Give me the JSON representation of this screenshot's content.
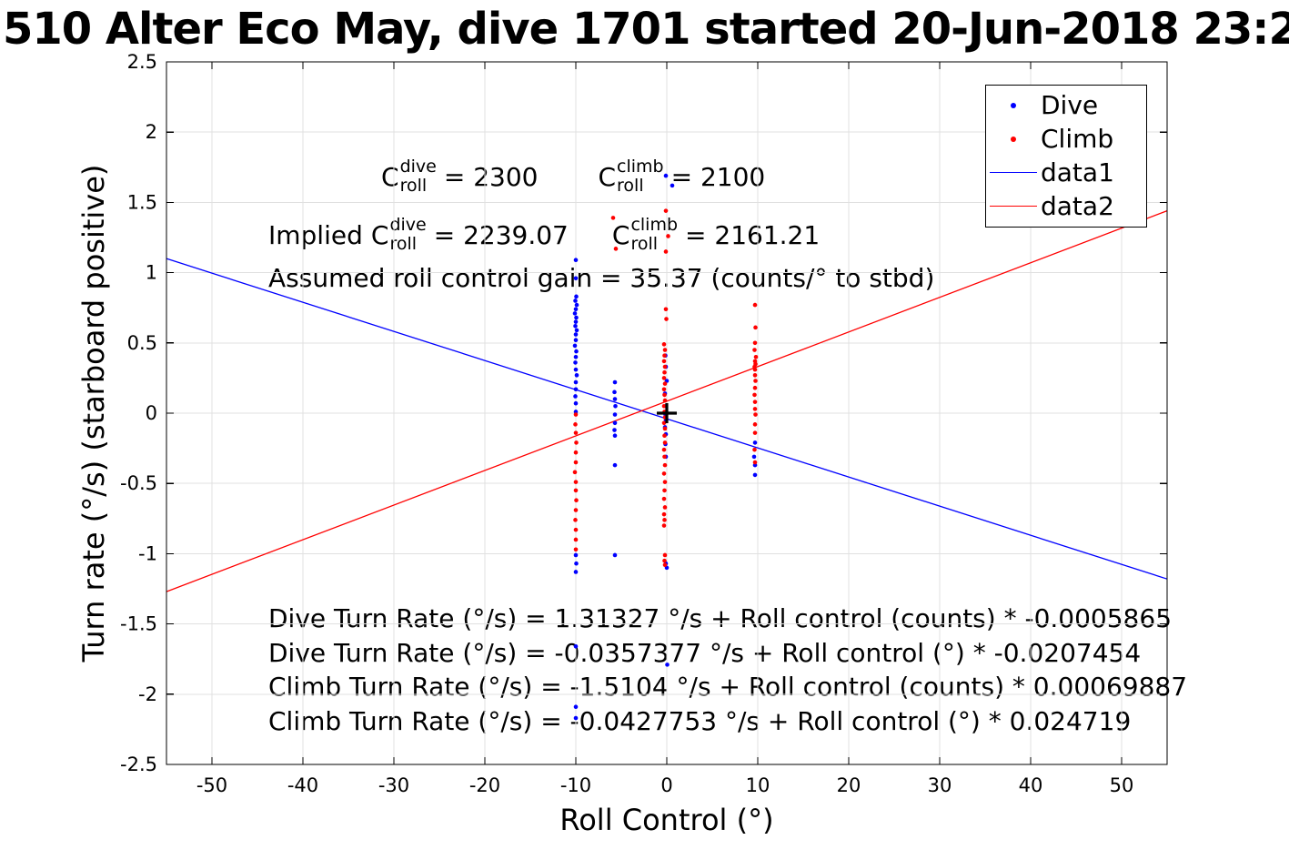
{
  "title": "510 Alter Eco May, dive 1701 started 20-Jun-2018 23:2",
  "colors": {
    "dive": "#0000FF",
    "climb": "#FF0000",
    "axis": "#000000",
    "grid": "#e0e0e0"
  },
  "annotations": {
    "coeff": {
      "c1": {
        "base": "C",
        "sup": "dive",
        "sub": "roll",
        "rhs": "= 2300"
      },
      "c2": {
        "base": "C",
        "sup": "climb",
        "sub": "roll",
        "rhs": "= 2100"
      }
    },
    "implied": {
      "prefix": "Implied",
      "c1": {
        "base": "C",
        "sup": "dive",
        "sub": "roll",
        "rhs": "= 2239.07"
      },
      "c2": {
        "base": "C",
        "sup": "climb",
        "sub": "roll",
        "rhs": "= 2161.21"
      }
    },
    "gain": "Assumed roll control gain = 35.37 (counts/° to stbd)",
    "values": {
      "c_roll_dive": 2300,
      "c_roll_climb": 2100,
      "implied_c_roll_dive": 2239.07,
      "implied_c_roll_climb": 2161.21,
      "roll_control_gain_counts_per_deg": 35.37
    }
  },
  "equations": [
    "Dive Turn Rate (°/s) = 1.31327 °/s + Roll control (counts) * -0.0005865",
    "Dive Turn Rate (°/s) = -0.0357377 °/s + Roll control (°) * -0.0207454",
    "Climb Turn Rate (°/s) = -1.5104 °/s + Roll control (counts) * 0.00069887",
    "Climb Turn Rate (°/s) = -0.0427753 °/s + Roll control (°) * 0.024719"
  ],
  "legend": {
    "items": [
      {
        "label": "Dive",
        "marker": "dot",
        "color": "#0000FF"
      },
      {
        "label": "Climb",
        "marker": "dot",
        "color": "#FF0000"
      },
      {
        "label": "data1",
        "marker": "line",
        "color": "#0000FF"
      },
      {
        "label": "data2",
        "marker": "line",
        "color": "#FF0000"
      }
    ],
    "position": "northeast"
  },
  "chart_data": {
    "type": "scatter",
    "xlabel": "Roll Control (°)",
    "ylabel": "Turn rate (°/s) (starboard positive)",
    "xlim": [
      -55,
      55
    ],
    "ylim": [
      -2.5,
      2.5
    ],
    "xticks": [
      -50,
      -40,
      -30,
      -20,
      -10,
      0,
      10,
      20,
      30,
      40,
      50
    ],
    "yticks": [
      -2.5,
      -2,
      -1.5,
      -1,
      -0.5,
      0,
      0.5,
      1,
      1.5,
      2,
      2.5
    ],
    "grid": true,
    "origin_marker": {
      "x": 0,
      "y": 0,
      "symbol": "+"
    },
    "fits": {
      "dive_counts": {
        "intercept": 1.31327,
        "slope": -0.0005865
      },
      "dive_deg": {
        "intercept": -0.0357377,
        "slope": -0.0207454
      },
      "climb_counts": {
        "intercept": -1.5104,
        "slope": 0.00069887
      },
      "climb_deg": {
        "intercept": -0.0427753,
        "slope": 0.024719
      }
    },
    "series": [
      {
        "name": "Dive",
        "kind": "scatter",
        "color": "#0000FF",
        "points": [
          [
            -10,
            1.09
          ],
          [
            -10,
            0.96
          ],
          [
            -9.95,
            0.83
          ],
          [
            -10.05,
            0.8
          ],
          [
            -9.9,
            0.77
          ],
          [
            -10,
            0.74
          ],
          [
            -10.1,
            0.71
          ],
          [
            -9.95,
            0.68
          ],
          [
            -10,
            0.65
          ],
          [
            -10.05,
            0.62
          ],
          [
            -9.9,
            0.59
          ],
          [
            -10,
            0.56
          ],
          [
            -10,
            0.52
          ],
          [
            -10.1,
            0.48
          ],
          [
            -9.95,
            0.44
          ],
          [
            -10,
            0.4
          ],
          [
            -10.05,
            0.36
          ],
          [
            -10,
            0.31
          ],
          [
            -9.9,
            0.27
          ],
          [
            -10,
            0.22
          ],
          [
            -10,
            0.17
          ],
          [
            -10.05,
            0.12
          ],
          [
            -10,
            0.07
          ],
          [
            -10,
            0.01
          ],
          [
            -10,
            -1.01
          ],
          [
            -9.95,
            -1.07
          ],
          [
            -10,
            -1.13
          ],
          [
            -10,
            -1.66
          ],
          [
            -10,
            -2.09
          ],
          [
            -10,
            -2.17
          ],
          [
            -5.7,
            0.22
          ],
          [
            -5.75,
            0.15
          ],
          [
            -5.7,
            0.1
          ],
          [
            -5.65,
            0.05
          ],
          [
            -5.7,
            -0.01
          ],
          [
            -5.7,
            -0.07
          ],
          [
            -5.75,
            -0.12
          ],
          [
            -5.7,
            -0.16
          ],
          [
            -5.7,
            -0.37
          ],
          [
            -5.7,
            -1.01
          ],
          [
            -0.1,
            1.69
          ],
          [
            0.6,
            1.62
          ],
          [
            -0.15,
            0.41
          ],
          [
            -0.1,
            0.33
          ],
          [
            0,
            0.23
          ],
          [
            -0.2,
            0.14
          ],
          [
            -0.1,
            0.05
          ],
          [
            -0.15,
            -0.01
          ],
          [
            -0.1,
            -0.05
          ],
          [
            -0.2,
            -0.1
          ],
          [
            -0.1,
            -0.15
          ],
          [
            -0.15,
            -0.22
          ],
          [
            -0.1,
            -0.31
          ],
          [
            -0.1,
            -1.07
          ],
          [
            0,
            -1.1
          ],
          [
            0.05,
            -1.79
          ],
          [
            9.7,
            -0.21
          ],
          [
            9.6,
            -0.31
          ],
          [
            9.7,
            -0.37
          ],
          [
            9.7,
            -0.44
          ]
        ]
      },
      {
        "name": "Climb",
        "kind": "scatter",
        "color": "#FF0000",
        "points": [
          [
            -10,
            -0.01
          ],
          [
            -10.05,
            -0.08
          ],
          [
            -10,
            -0.14
          ],
          [
            -9.95,
            -0.21
          ],
          [
            -10,
            -0.28
          ],
          [
            -10,
            -0.35
          ],
          [
            -10.1,
            -0.42
          ],
          [
            -10,
            -0.49
          ],
          [
            -10,
            -0.55
          ],
          [
            -9.95,
            -0.62
          ],
          [
            -10,
            -0.69
          ],
          [
            -10.05,
            -0.76
          ],
          [
            -10,
            -0.83
          ],
          [
            -10,
            -0.9
          ],
          [
            -10,
            -0.97
          ],
          [
            -5.9,
            1.39
          ],
          [
            -5.6,
            1.17
          ],
          [
            -0.1,
            1.44
          ],
          [
            0.15,
            1.26
          ],
          [
            -0.1,
            1.15
          ],
          [
            -0.1,
            0.74
          ],
          [
            -0.05,
            0.67
          ],
          [
            -0.3,
            0.49
          ],
          [
            -0.2,
            0.45
          ],
          [
            -0.25,
            0.41
          ],
          [
            -0.3,
            0.37
          ],
          [
            -0.2,
            0.33
          ],
          [
            -0.25,
            0.29
          ],
          [
            -0.3,
            0.25
          ],
          [
            -0.2,
            0.21
          ],
          [
            -0.3,
            0.17
          ],
          [
            -0.25,
            0.13
          ],
          [
            -0.2,
            0.09
          ],
          [
            -0.3,
            0.05
          ],
          [
            -0.25,
            0.01
          ],
          [
            -0.2,
            -0.03
          ],
          [
            -0.3,
            -0.07
          ],
          [
            -0.2,
            -0.11
          ],
          [
            -0.25,
            -0.16
          ],
          [
            -0.2,
            -0.21
          ],
          [
            -0.3,
            -0.26
          ],
          [
            -0.25,
            -0.31
          ],
          [
            -0.2,
            -0.37
          ],
          [
            -0.3,
            -0.43
          ],
          [
            -0.2,
            -0.49
          ],
          [
            -0.25,
            -0.55
          ],
          [
            -0.3,
            -0.61
          ],
          [
            -0.2,
            -0.67
          ],
          [
            -0.3,
            -0.72
          ],
          [
            -0.25,
            -0.76
          ],
          [
            -0.3,
            -0.8
          ],
          [
            -0.2,
            -1.01
          ],
          [
            -0.25,
            -1.05
          ],
          [
            -0.2,
            -1.08
          ],
          [
            9.7,
            0.77
          ],
          [
            9.75,
            0.61
          ],
          [
            9.7,
            0.5
          ],
          [
            9.65,
            0.45
          ],
          [
            9.8,
            0.4
          ],
          [
            9.7,
            0.37
          ],
          [
            9.75,
            0.35
          ],
          [
            9.65,
            0.33
          ],
          [
            9.7,
            0.31
          ],
          [
            9.7,
            0.27
          ],
          [
            9.75,
            0.23
          ],
          [
            9.7,
            0.18
          ],
          [
            9.65,
            0.13
          ],
          [
            9.7,
            0.08
          ],
          [
            9.7,
            0.03
          ],
          [
            9.75,
            -0.01
          ],
          [
            9.7,
            -0.08
          ],
          [
            9.7,
            -0.14
          ],
          [
            9.65,
            -0.26
          ],
          [
            9.7,
            -0.35
          ]
        ]
      },
      {
        "name": "data1",
        "kind": "line",
        "color": "#0000FF",
        "endpoints": [
          [
            -55,
            1.1
          ],
          [
            55,
            -1.18
          ]
        ]
      },
      {
        "name": "data2",
        "kind": "line",
        "color": "#FF0000",
        "endpoints": [
          [
            -55,
            -1.27
          ],
          [
            55,
            1.44
          ]
        ]
      }
    ]
  }
}
